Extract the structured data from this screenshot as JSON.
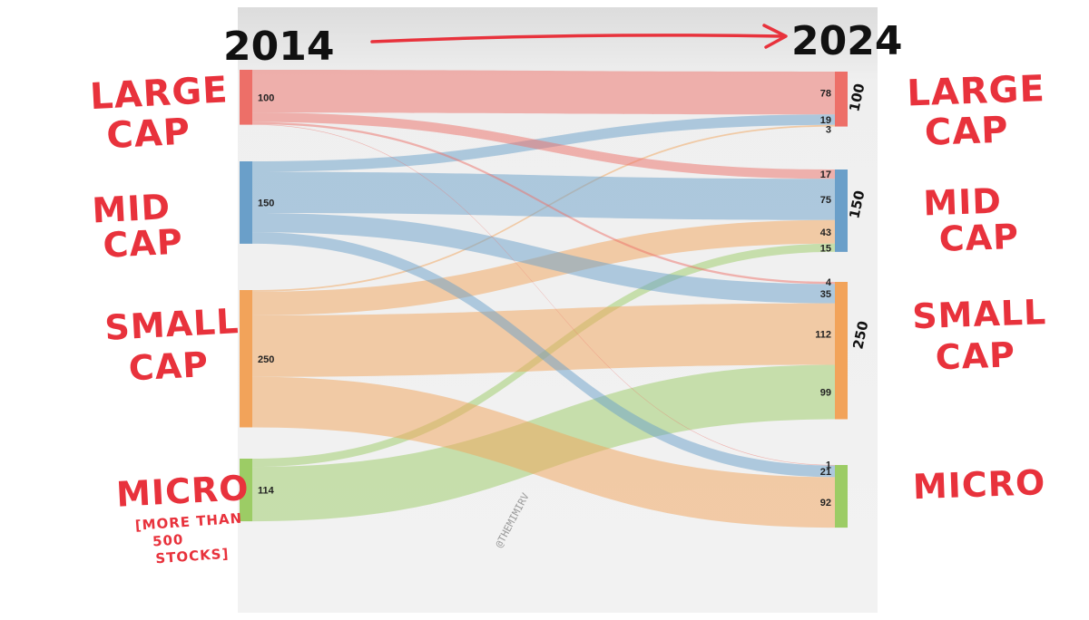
{
  "chart_data": {
    "type": "sankey",
    "start_year": "2014",
    "end_year": "2024",
    "colors": {
      "large": "#ed6f68",
      "mid": "#6a9fc9",
      "small": "#f2a35a",
      "micro": "#9ccc65"
    },
    "left_nodes": [
      {
        "id": "large",
        "label": "LARGE CAP",
        "value": 100,
        "value_label": "100"
      },
      {
        "id": "mid",
        "label": "MID CAP",
        "value": 150,
        "value_label": "150"
      },
      {
        "id": "small",
        "label": "SMALL CAP",
        "value": 250,
        "value_label": "250"
      },
      {
        "id": "micro",
        "label": "MICRO",
        "value": 114,
        "value_label": "114",
        "note": "[MORE THAN 500 STOCKS]"
      }
    ],
    "right_nodes": [
      {
        "id": "large",
        "label": "LARGE CAP",
        "total": 100,
        "total_label": "100"
      },
      {
        "id": "mid",
        "label": "MID CAP",
        "total": 150,
        "total_label": "150"
      },
      {
        "id": "small",
        "label": "SMALL CAP",
        "total": 250,
        "total_label": "250"
      },
      {
        "id": "micro",
        "label": "MICRO"
      }
    ],
    "flows": [
      {
        "from": "large",
        "to": "large",
        "value": 78,
        "label": "78"
      },
      {
        "from": "mid",
        "to": "large",
        "value": 19,
        "label": "19"
      },
      {
        "from": "small",
        "to": "large",
        "value": 3,
        "label": "3"
      },
      {
        "from": "large",
        "to": "mid",
        "value": 17,
        "label": "17"
      },
      {
        "from": "mid",
        "to": "mid",
        "value": 75,
        "label": "75"
      },
      {
        "from": "small",
        "to": "mid",
        "value": 43,
        "label": "43"
      },
      {
        "from": "micro",
        "to": "mid",
        "value": 15,
        "label": "15"
      },
      {
        "from": "large",
        "to": "small",
        "value": 4,
        "label": "4"
      },
      {
        "from": "mid",
        "to": "small",
        "value": 35,
        "label": "35"
      },
      {
        "from": "small",
        "to": "small",
        "value": 112,
        "label": "112"
      },
      {
        "from": "micro",
        "to": "small",
        "value": 99,
        "label": "99"
      },
      {
        "from": "large",
        "to": "micro",
        "value": 1,
        "label": "1"
      },
      {
        "from": "mid",
        "to": "micro",
        "value": 21,
        "label": "21"
      },
      {
        "from": "small",
        "to": "micro",
        "value": 92,
        "label": "92"
      }
    ],
    "watermark": "@THEMIMIRV"
  }
}
